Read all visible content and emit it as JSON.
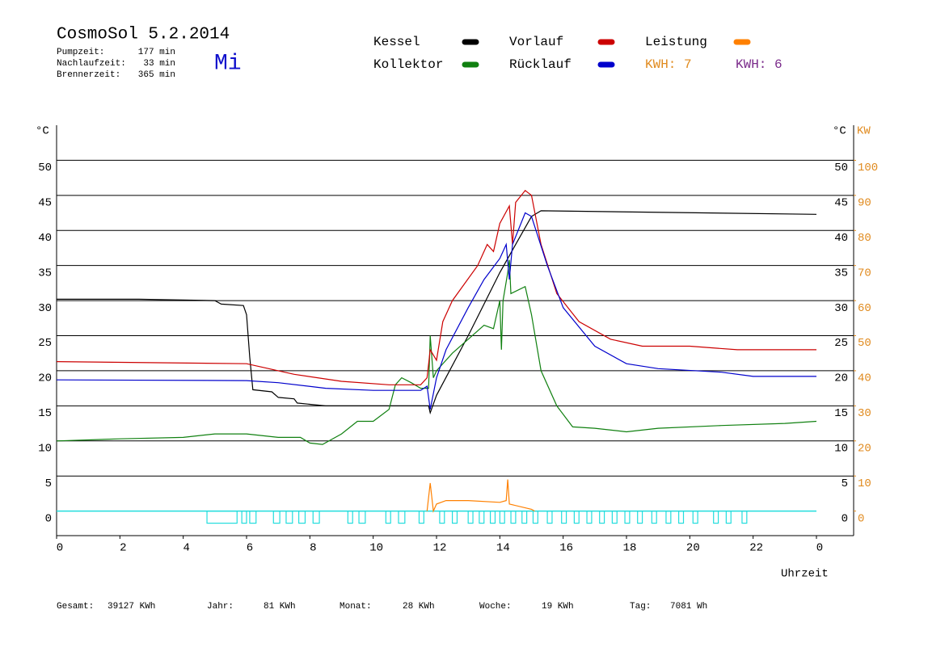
{
  "chart_data": {
    "type": "line",
    "title": "CosmoSol 5.2.2014",
    "weekday": "Mi",
    "stats": [
      {
        "label": "Pumpzeit:",
        "value": "177 min"
      },
      {
        "label": "Nachlaufzeit:",
        "value": "33 min"
      },
      {
        "label": "Brennerzeit:",
        "value": "365 min"
      }
    ],
    "kwh_labels": [
      {
        "text": "KWH: 7",
        "color": "#e08a1e"
      },
      {
        "text": "KWH: 6",
        "color": "#7a2a8a"
      }
    ],
    "y_label": "°C",
    "y2_label": "KW",
    "x_label": "Uhrzeit",
    "xlim": [
      0,
      24
    ],
    "xticks": [
      0,
      2,
      4,
      6,
      8,
      10,
      12,
      14,
      16,
      18,
      20,
      22,
      {
        "value": 24,
        "label": "0"
      }
    ],
    "ylim": [
      -3.5,
      55
    ],
    "yticks": [
      0,
      5,
      10,
      15,
      20,
      25,
      30,
      35,
      40,
      45,
      50
    ],
    "y2lim": [
      -7,
      110
    ],
    "y2ticks": [
      0,
      10,
      20,
      30,
      40,
      50,
      60,
      70,
      80,
      90,
      100
    ],
    "grid": true,
    "pump_color": "#22dddd",
    "pump_on": [
      [
        4.75,
        5.7
      ],
      [
        5.85,
        6.0
      ],
      [
        6.1,
        6.3
      ],
      [
        6.85,
        7.05
      ],
      [
        7.25,
        7.45
      ],
      [
        7.65,
        7.85
      ],
      [
        8.1,
        8.3
      ],
      [
        9.2,
        9.35
      ],
      [
        9.55,
        9.75
      ],
      [
        10.4,
        10.55
      ],
      [
        10.8,
        11.0
      ],
      [
        11.45,
        11.6
      ],
      [
        12.1,
        12.25
      ],
      [
        12.5,
        12.65
      ],
      [
        13.0,
        13.15
      ],
      [
        13.35,
        13.5
      ],
      [
        13.7,
        13.85
      ],
      [
        14.0,
        14.15
      ],
      [
        14.35,
        14.5
      ],
      [
        14.7,
        14.85
      ],
      [
        15.05,
        15.2
      ],
      [
        15.5,
        15.65
      ],
      [
        15.95,
        16.1
      ],
      [
        16.35,
        16.5
      ],
      [
        16.75,
        16.9
      ],
      [
        17.15,
        17.3
      ],
      [
        17.55,
        17.7
      ],
      [
        17.95,
        18.1
      ],
      [
        18.35,
        18.5
      ],
      [
        18.8,
        18.95
      ],
      [
        19.25,
        19.4
      ],
      [
        19.65,
        19.8
      ],
      [
        20.1,
        20.25
      ],
      [
        20.75,
        20.9
      ],
      [
        21.15,
        21.3
      ],
      [
        21.65,
        21.8
      ]
    ],
    "series": [
      {
        "name": "Kessel",
        "color": "#000000",
        "x": [
          0,
          2.6,
          5.0,
          5.2,
          5.9,
          6.0,
          6.1,
          6.2,
          6.8,
          7.0,
          7.5,
          7.6,
          8.5,
          11.75,
          11.8,
          12.0,
          13.0,
          14.0,
          14.5,
          15.0,
          15.3,
          24
        ],
        "values": [
          30.2,
          30.2,
          30.0,
          29.5,
          29.3,
          28,
          22,
          17.3,
          17.0,
          16.2,
          16.0,
          15.4,
          15.0,
          15.0,
          14.0,
          16.5,
          25,
          34,
          38,
          42,
          42.8,
          42.3
        ]
      },
      {
        "name": "Kollektor",
        "color": "#108010",
        "x": [
          0,
          2,
          4,
          5,
          6,
          7,
          7.7,
          8,
          8.4,
          9,
          9.5,
          10.0,
          10.5,
          10.7,
          10.9,
          11.2,
          11.5,
          11.75,
          11.8,
          11.9,
          12.0,
          12.5,
          13.0,
          13.5,
          13.8,
          14.0,
          14.05,
          14.1,
          14.25,
          14.3,
          14.35,
          14.8,
          15.0,
          15.3,
          15.8,
          16.3,
          17,
          18,
          19,
          21,
          23,
          24
        ],
        "values": [
          10,
          10.3,
          10.5,
          11,
          11,
          10.5,
          10.5,
          9.7,
          9.5,
          11,
          12.8,
          12.8,
          14.5,
          18,
          19,
          18.3,
          17.5,
          17.5,
          25,
          19,
          20,
          22.5,
          24.5,
          26.5,
          26,
          30,
          23,
          30,
          34,
          35.8,
          31,
          32,
          28,
          20,
          15,
          12,
          11.8,
          11.3,
          11.8,
          12.2,
          12.5,
          12.8
        ]
      },
      {
        "name": "Vorlauf",
        "color": "#cc0000",
        "x": [
          0,
          6,
          6.5,
          7.5,
          9,
          10.5,
          11.5,
          11.7,
          11.8,
          12.0,
          12.2,
          12.5,
          13.3,
          13.6,
          13.8,
          14.0,
          14.3,
          14.4,
          14.5,
          14.8,
          15.0,
          15.3,
          15.8,
          16.5,
          17.5,
          18.5,
          20,
          21.5,
          24
        ],
        "values": [
          21.3,
          21,
          20.5,
          19.5,
          18.5,
          18,
          18,
          19,
          23,
          21.5,
          27,
          30,
          35,
          38,
          37,
          41,
          43.5,
          38,
          44,
          45.7,
          45,
          38,
          31,
          27,
          24.5,
          23.5,
          23.5,
          23,
          23
        ]
      },
      {
        "name": "Rücklauf",
        "color": "#0000cc",
        "x": [
          0,
          6,
          7,
          8.5,
          10,
          11.5,
          11.7,
          11.8,
          12.0,
          12.3,
          13.0,
          13.5,
          14.0,
          14.2,
          14.3,
          14.4,
          14.8,
          15.0,
          15.5,
          16.0,
          17.0,
          18.0,
          19.0,
          21.0,
          22.0,
          24
        ],
        "values": [
          18.7,
          18.6,
          18.3,
          17.5,
          17.2,
          17.2,
          17.8,
          14.5,
          19,
          23,
          29,
          33,
          36,
          38,
          33,
          38,
          42.5,
          42,
          35,
          29,
          23.5,
          21,
          20.3,
          19.8,
          19.2,
          19.2
        ]
      },
      {
        "name": "Leistung",
        "color": "#ff8000",
        "axis": "y2",
        "x": [
          11.7,
          11.8,
          11.9,
          12.0,
          12.3,
          13.0,
          14.0,
          14.2,
          14.25,
          14.3,
          15.0,
          15.1
        ],
        "values": [
          0,
          8,
          0,
          2,
          3,
          3,
          2.5,
          3,
          9,
          2,
          0.5,
          0
        ]
      }
    ],
    "footer": [
      {
        "label": "Gesamt:",
        "value": "39127 KWh"
      },
      {
        "label": "Jahr:",
        "value": "81 KWh"
      },
      {
        "label": "Monat:",
        "value": "28 KWh"
      },
      {
        "label": "Woche:",
        "value": "19 KWh"
      },
      {
        "label": "Tag:",
        "value": "7081 Wh"
      }
    ]
  }
}
